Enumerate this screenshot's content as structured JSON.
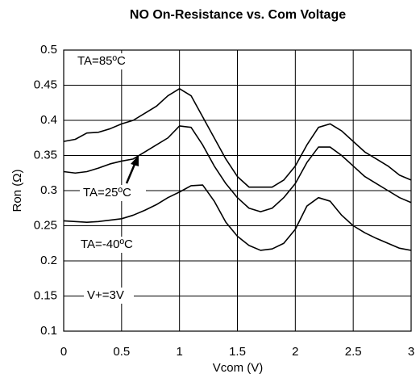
{
  "chart_data": {
    "type": "line",
    "title": "NO On-Resistance vs. Com Voltage",
    "xlabel": "Vcom (V)",
    "ylabel": "Ron (Ω)",
    "x": [
      0,
      0.1,
      0.2,
      0.3,
      0.4,
      0.5,
      0.6,
      0.7,
      0.8,
      0.9,
      1,
      1.1,
      1.2,
      1.3,
      1.4,
      1.5,
      1.6,
      1.7,
      1.8,
      1.9,
      2,
      2.1,
      2.2,
      2.3,
      2.4,
      2.5,
      2.6,
      2.7,
      2.8,
      2.9,
      3
    ],
    "series": [
      {
        "name": "TA=85ºC",
        "color": "#000000",
        "values": [
          0.37,
          0.373,
          0.382,
          0.383,
          0.388,
          0.395,
          0.4,
          0.41,
          0.42,
          0.435,
          0.445,
          0.435,
          0.405,
          0.375,
          0.345,
          0.32,
          0.305,
          0.305,
          0.305,
          0.315,
          0.335,
          0.365,
          0.39,
          0.395,
          0.385,
          0.37,
          0.355,
          0.345,
          0.335,
          0.322,
          0.315
        ]
      },
      {
        "name": "TA=25ºC",
        "color": "#000000",
        "values": [
          0.327,
          0.325,
          0.327,
          0.332,
          0.338,
          0.342,
          0.345,
          0.355,
          0.365,
          0.375,
          0.392,
          0.39,
          0.365,
          0.335,
          0.31,
          0.29,
          0.275,
          0.27,
          0.275,
          0.29,
          0.31,
          0.34,
          0.362,
          0.362,
          0.35,
          0.335,
          0.32,
          0.31,
          0.3,
          0.29,
          0.283
        ]
      },
      {
        "name": "TA=-40ºC",
        "color": "#000000",
        "values": [
          0.257,
          0.256,
          0.255,
          0.256,
          0.258,
          0.26,
          0.265,
          0.272,
          0.28,
          0.29,
          0.298,
          0.307,
          0.308,
          0.285,
          0.255,
          0.235,
          0.222,
          0.215,
          0.217,
          0.225,
          0.245,
          0.278,
          0.29,
          0.285,
          0.265,
          0.25,
          0.24,
          0.232,
          0.225,
          0.218,
          0.215
        ]
      }
    ],
    "annotation": "V+=3V",
    "xlim": [
      0,
      3
    ],
    "xticks": [
      0,
      0.5,
      1,
      1.5,
      2,
      2.5,
      3
    ],
    "ylim": [
      0.1,
      0.5
    ],
    "yticks": [
      0.1,
      0.15,
      0.2,
      0.25,
      0.3,
      0.35,
      0.4,
      0.45,
      0.5
    ],
    "grid": true
  }
}
